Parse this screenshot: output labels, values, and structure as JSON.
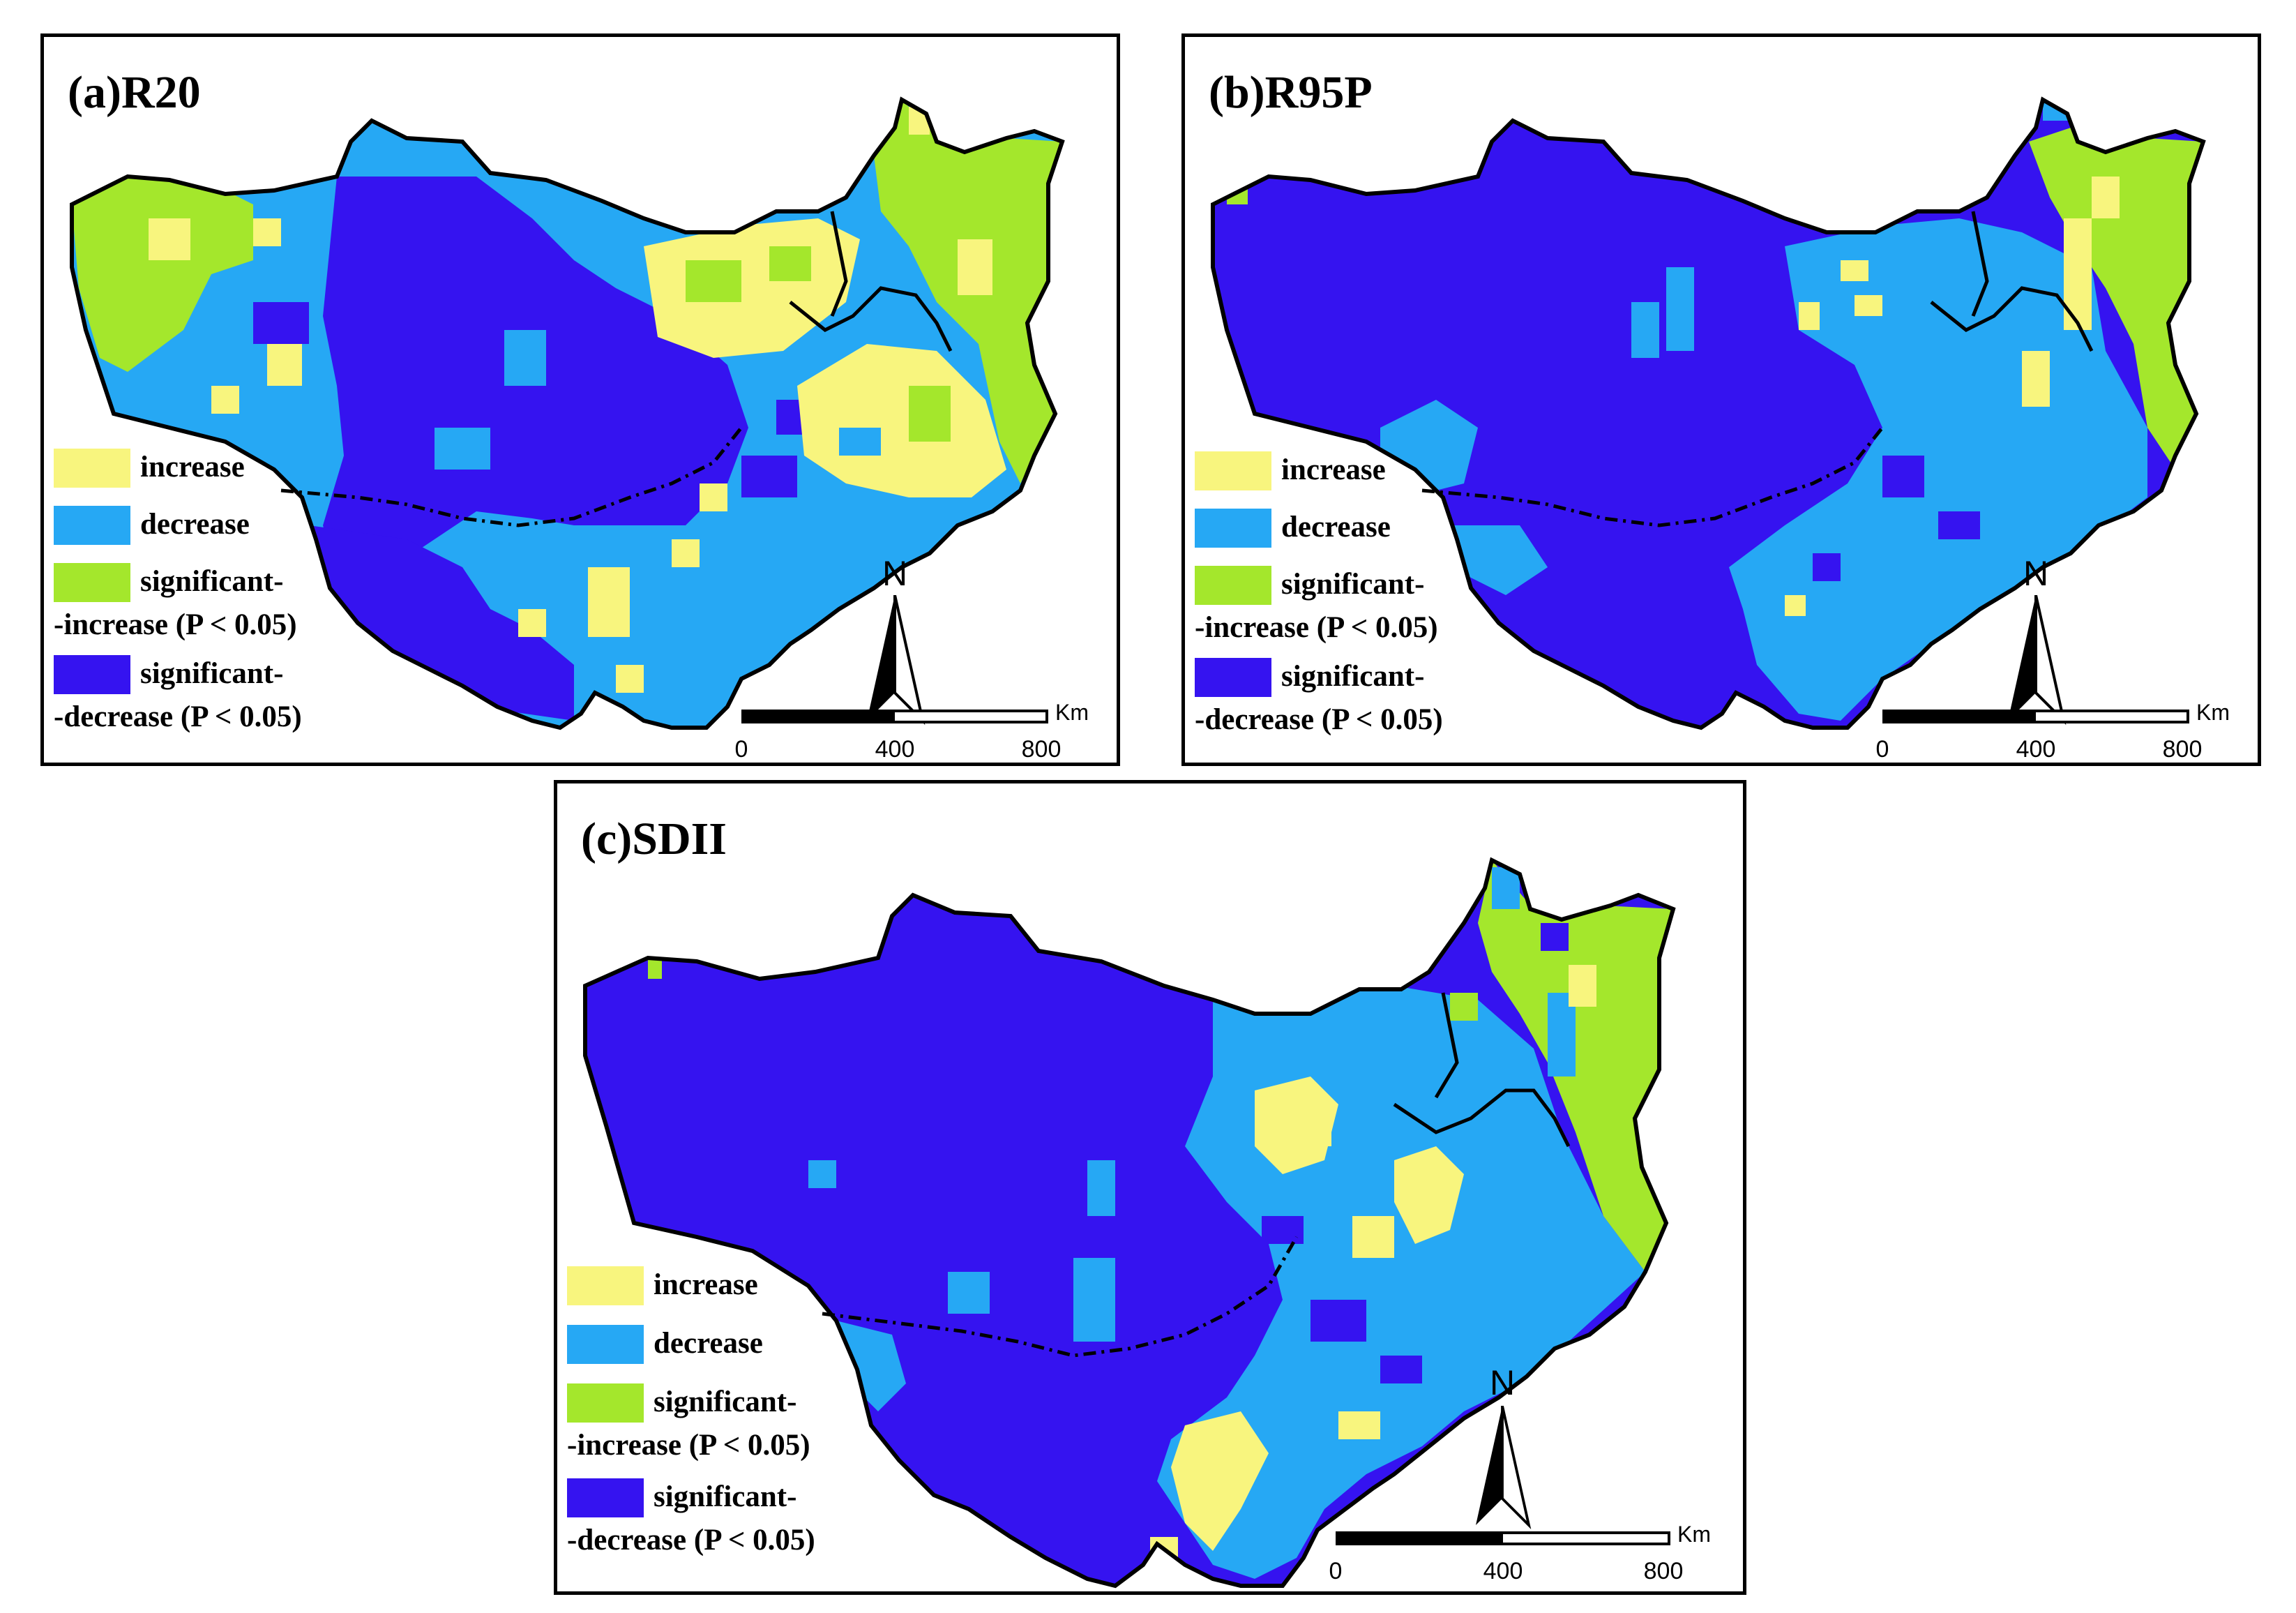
{
  "colors": {
    "increase": "#f8f57e",
    "decrease": "#26a8f4",
    "significant_increase": "#a4e72c",
    "significant_decrease": "#3513f0"
  },
  "legend": {
    "increase": "increase",
    "decrease": "decrease",
    "sig_increase_1": "significant-",
    "sig_increase_2": "-increase (P < 0.05)",
    "sig_decrease_1": "significant-",
    "sig_decrease_2": "-decrease (P < 0.05)"
  },
  "north_label": "N",
  "scale": {
    "ticks": [
      "0",
      "400",
      "800"
    ],
    "unit": "Km"
  },
  "panels": [
    {
      "id": "a",
      "title": "(a)R20"
    },
    {
      "id": "b",
      "title": "(b)R95P"
    },
    {
      "id": "c",
      "title": "(c)SDII"
    }
  ]
}
